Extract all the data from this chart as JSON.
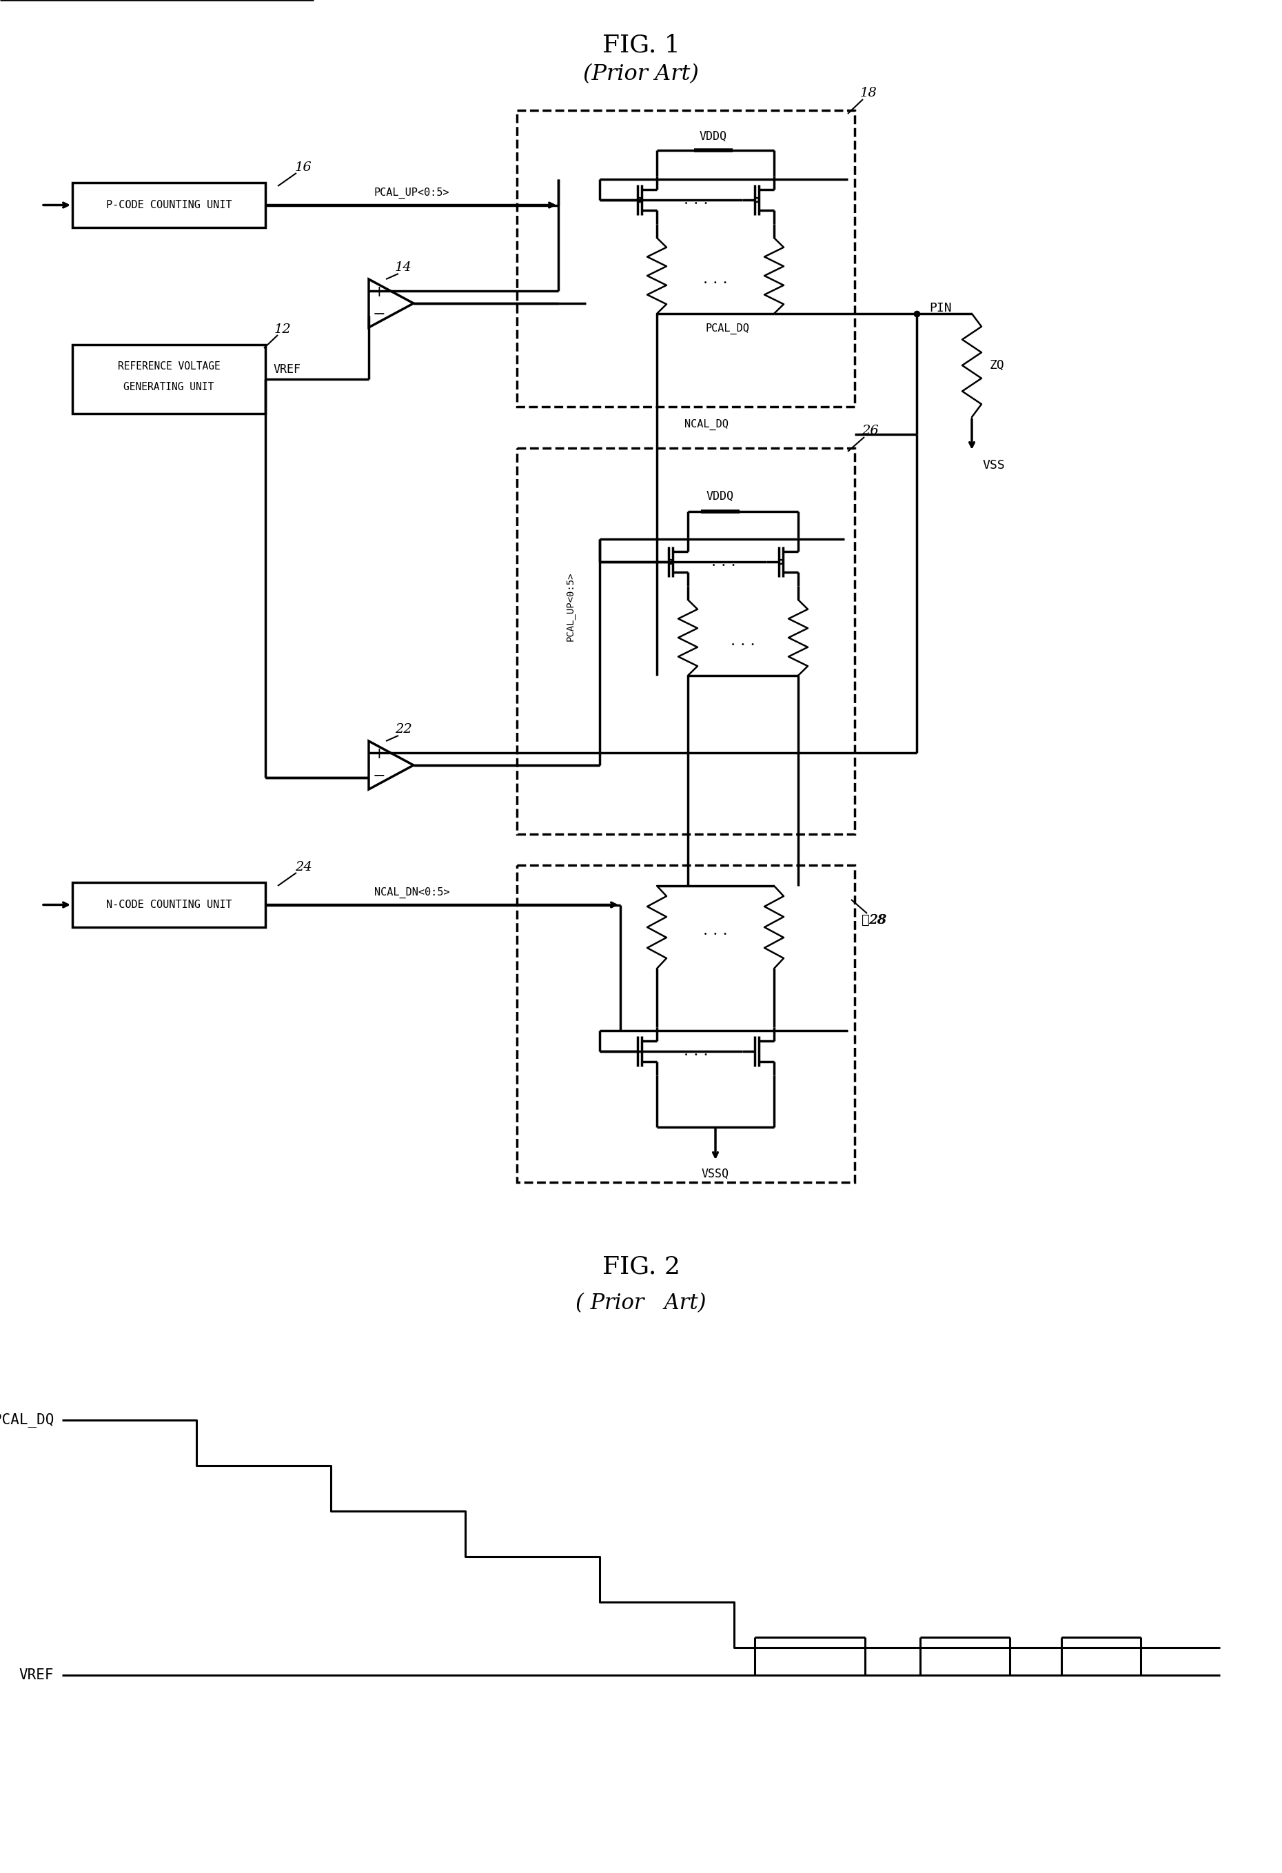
{
  "fig1_title": "FIG. 1",
  "fig1_subtitle": "(Prior Art)",
  "fig2_title": "FIG. 2",
  "fig2_subtitle": "( Prior   Art)",
  "bg_color": "#ffffff",
  "lw": 1.8,
  "lw_thick": 2.5,
  "lw_border": 2.2
}
